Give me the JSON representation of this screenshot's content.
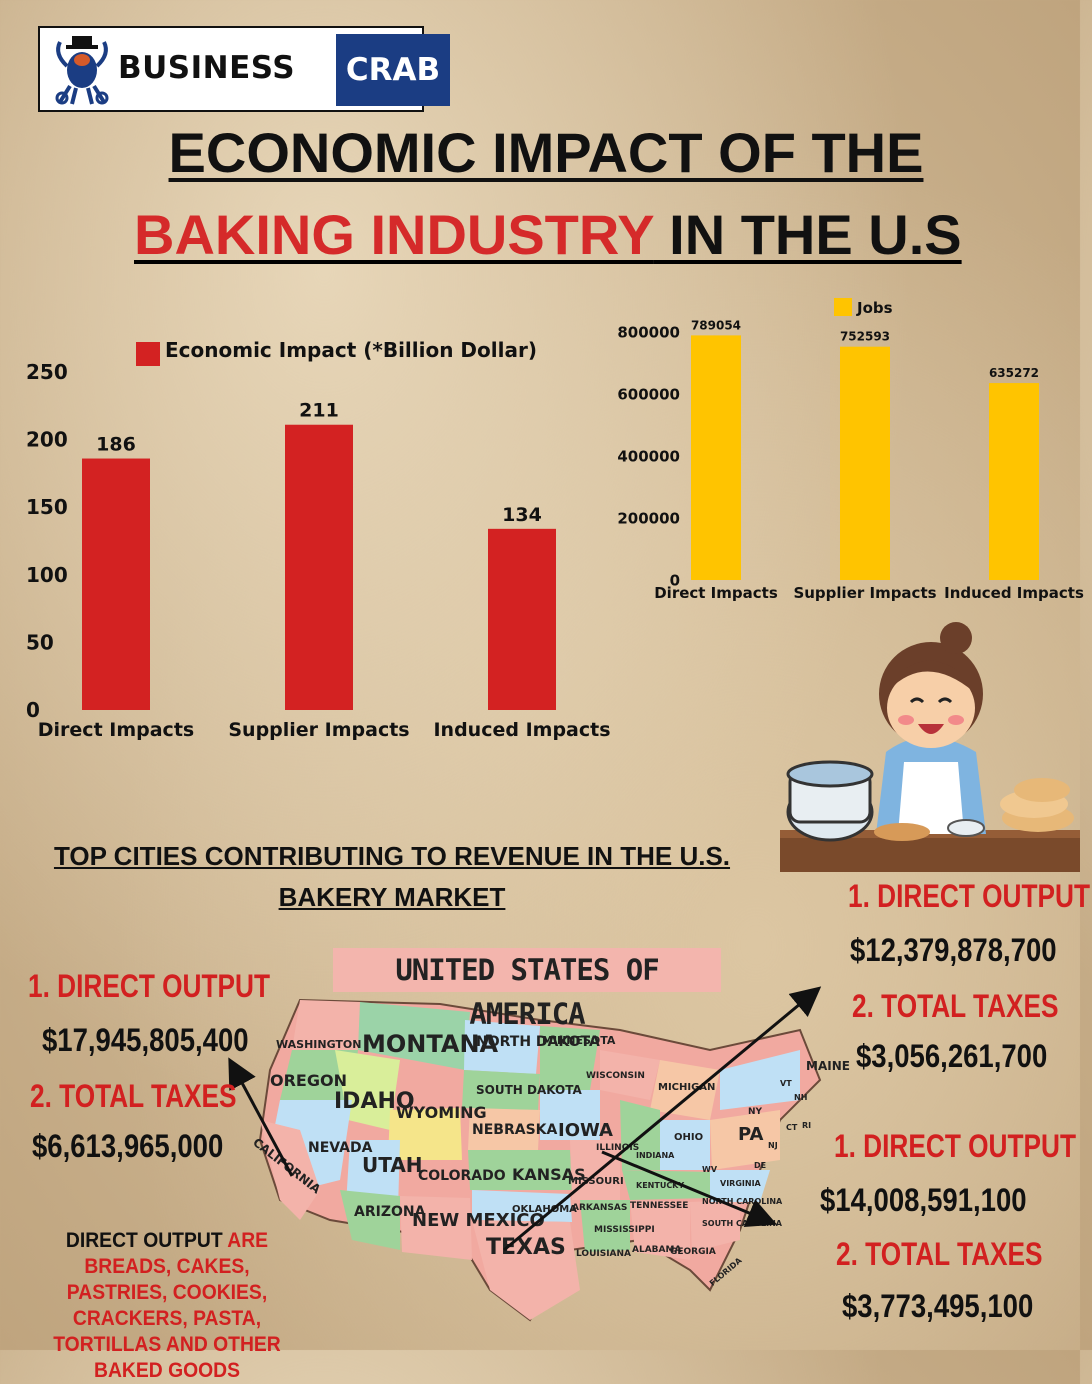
{
  "brand": {
    "name_left": "BUSINESS",
    "name_right": "CRAB"
  },
  "title": {
    "line1": "ECONOMIC IMPACT OF THE",
    "line2_highlight": "BAKING INDUSTRY",
    "line2_rest": " IN THE U.S"
  },
  "chart_data": [
    {
      "type": "bar",
      "legend": "Economic Impact (*Billion Dollar)",
      "categories": [
        "Direct Impacts",
        "Supplier Impacts",
        "Induced Impacts"
      ],
      "values": [
        186,
        211,
        134
      ],
      "value_labels": [
        "186",
        "211",
        "134"
      ],
      "ylim": [
        0,
        250
      ],
      "yticks": [
        "0",
        "50",
        "100",
        "150",
        "200",
        "250"
      ],
      "color": "#d32222",
      "legend_position": "top"
    },
    {
      "type": "bar",
      "legend": "Jobs",
      "categories": [
        "Direct Impacts",
        "Supplier Impacts",
        "Induced Impacts"
      ],
      "values": [
        789054,
        752593,
        635272
      ],
      "value_labels": [
        "789054",
        "752593",
        "635272"
      ],
      "ylim": [
        0,
        800000
      ],
      "yticks": [
        "0",
        "200000",
        "400000",
        "600000",
        "800000"
      ],
      "color": "#ffc400",
      "legend_position": "top"
    }
  ],
  "cities": {
    "heading": "TOP CITIES CONTRIBUTING TO REVENUE IN THE U.S. BAKERY MARKET",
    "map_title": "UNITED STATES OF AMERICA",
    "california": {
      "output_label": "1.  DIRECT OUTPUT",
      "output_value": "$17,945,805,400",
      "taxes_label": "2. TOTAL TAXES",
      "taxes_value": "$6,613,965,000"
    },
    "northeast": {
      "output_label": "1.  DIRECT OUTPUT",
      "output_value": "$12,379,878,700",
      "taxes_label": "2. TOTAL TAXES",
      "taxes_value": "$3,056,261,700"
    },
    "texas": {
      "output_label": "1.  DIRECT OUTPUT",
      "output_value": "$14,008,591,100",
      "taxes_label": "2. TOTAL TAXES",
      "taxes_value": "$3,773,495,100"
    },
    "note_black1": "DIRECT OUTPUT",
    "note_red1": " ARE BREADS, CAKES, PASTRIES, COOKIES, CRACKERS, PASTA, TORTILLAS AND OTHER BAKED GOODS"
  },
  "map_labels": {
    "washington": "WASHINGTON",
    "oregon": "OREGON",
    "california": "CALIFORNIA",
    "nevada": "NEVADA",
    "idaho": "IDAHO",
    "montana": "MONTANA",
    "wyoming": "WYOMING",
    "utah": "UTAH",
    "arizona": "ARIZONA",
    "colorado": "COLORADO",
    "new_mexico": "NEW MEXICO",
    "north_dakota": "NORTH DAKOTA",
    "south_dakota": "SOUTH DAKOTA",
    "nebraska": "NEBRASKA",
    "kansas": "KANSAS",
    "oklahoma": "OKLAHOMA",
    "texas": "TEXAS",
    "minnesota": "MINNESOTA",
    "iowa": "IOWA",
    "missouri": "MISSOURI",
    "arkansas": "ARKANSAS",
    "louisiana": "LOUISIANA",
    "wisconsin": "WISCONSIN",
    "illinois": "ILLINOIS",
    "michigan": "MICHIGAN",
    "indiana": "INDIANA",
    "ohio": "OHIO",
    "kentucky": "KENTUCKY",
    "tennessee": "TENNESSEE",
    "mississippi": "MISSISSIPPI",
    "alabama": "ALABAMA",
    "georgia": "GEORGIA",
    "florida": "FLORIDA",
    "south_carolina": "SOUTH CAROLINA",
    "north_carolina": "NORTH CAROLINA",
    "virginia": "VIRGINIA",
    "wv": "WV",
    "pa": "PA",
    "ny": "NY",
    "maine": "MAINE",
    "vt": "VT",
    "nh": "NH",
    "ct": "CT",
    "ri": "RI",
    "nj": "NJ",
    "de": "DE"
  }
}
